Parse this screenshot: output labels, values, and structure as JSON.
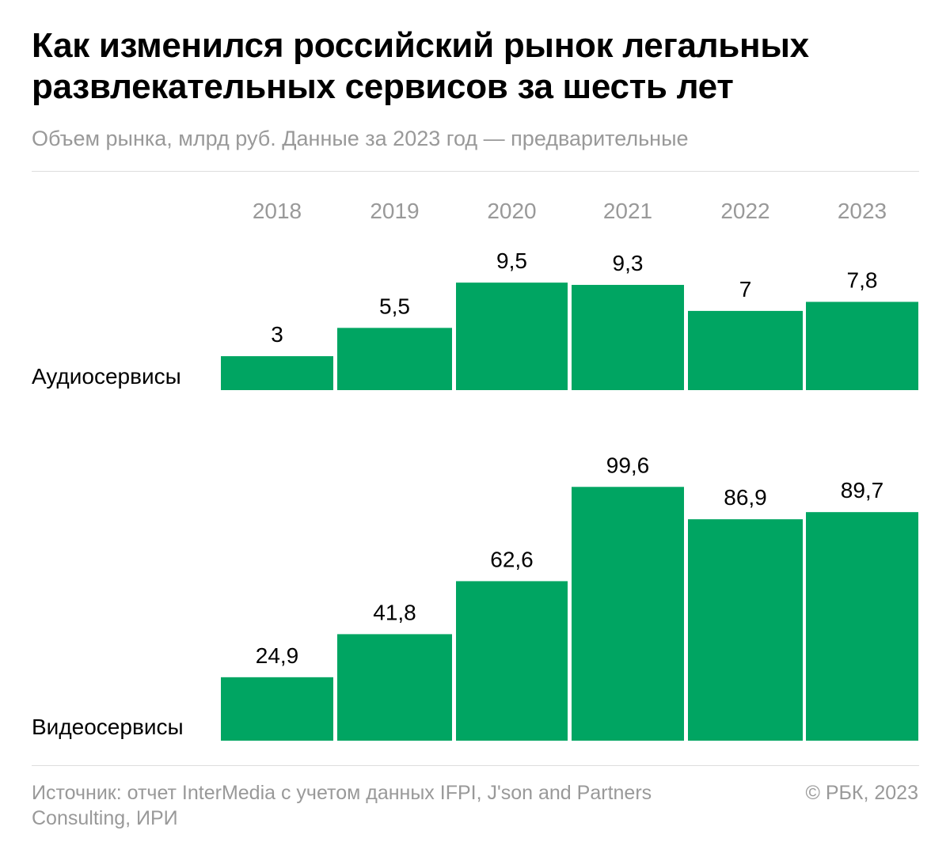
{
  "title": "Как изменился российский рынок легальных развлекательных сервисов за шесть лет",
  "subtitle": "Объем рынка, млрд руб. Данные за 2023 год — предварительные",
  "source": "Источник: отчет InterMedia с учетом данных IFPI, J'son and Partners Consulting, ИРИ",
  "copyright": "© РБК, 2023",
  "colors": {
    "bar": "#00A562",
    "year": "#999999",
    "text": "#000000"
  },
  "chart_data": {
    "type": "bar",
    "categories": [
      "2018",
      "2019",
      "2020",
      "2021",
      "2022",
      "2023"
    ],
    "unit": "млрд руб.",
    "series": [
      {
        "name": "Аудиосервисы",
        "values": [
          3,
          5.5,
          9.5,
          9.3,
          7,
          7.8
        ],
        "labels": [
          "3",
          "5,5",
          "9,5",
          "9,3",
          "7",
          "7,8"
        ]
      },
      {
        "name": "Видеосервисы",
        "values": [
          24.9,
          41.8,
          62.6,
          99.6,
          86.9,
          89.7
        ],
        "labels": [
          "24,9",
          "41,8",
          "62,6",
          "99,6",
          "86,9",
          "89,7"
        ]
      }
    ],
    "grid": false,
    "legend": "none"
  }
}
